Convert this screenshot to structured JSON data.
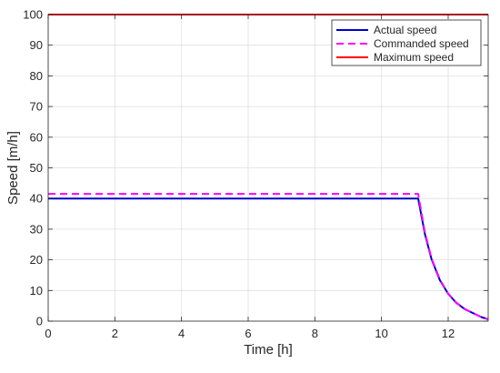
{
  "chart_data": {
    "type": "line",
    "xlabel": "Time [h]",
    "ylabel": "Speed [m/h]",
    "xlim": [
      0,
      13.2
    ],
    "ylim": [
      0,
      100
    ],
    "xticks": [
      0,
      2,
      4,
      6,
      8,
      10,
      12
    ],
    "yticks": [
      0,
      10,
      20,
      30,
      40,
      50,
      60,
      70,
      80,
      90,
      100
    ],
    "grid": true,
    "legend_position": "top-right",
    "series": [
      {
        "name": "Actual speed",
        "color": "#0000c8",
        "style": "solid",
        "x": [
          0,
          11.1,
          11.3,
          11.5,
          11.75,
          12.0,
          12.25,
          12.5,
          12.75,
          13.0,
          13.2
        ],
        "y": [
          40,
          40,
          28.5,
          20.2,
          13.4,
          8.9,
          5.9,
          3.9,
          2.6,
          1.3,
          0.6
        ]
      },
      {
        "name": "Commanded speed",
        "color": "#ff00ff",
        "style": "dashed",
        "x": [
          0,
          11.1,
          11.3,
          11.5,
          11.75,
          12.0,
          12.25,
          12.5,
          12.75,
          13.0,
          13.2
        ],
        "y": [
          41.5,
          41.5,
          29.0,
          20.5,
          13.6,
          9.0,
          6.0,
          4.0,
          2.6,
          1.3,
          0.6
        ]
      },
      {
        "name": "Maximum speed",
        "color": "#ff0000",
        "style": "solid",
        "x": [
          0,
          13.2
        ],
        "y": [
          100,
          100
        ]
      }
    ]
  }
}
